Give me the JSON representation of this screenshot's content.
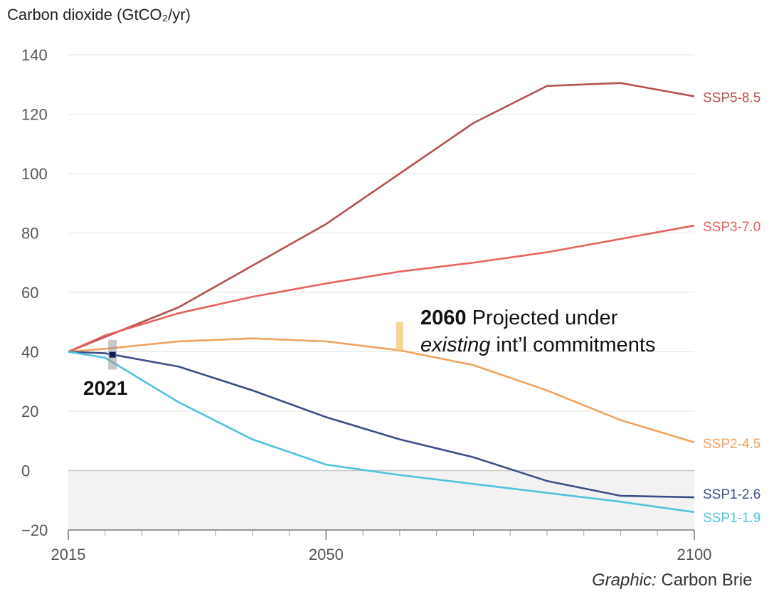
{
  "chart_data": {
    "type": "line",
    "ylabel": "Carbon dioxide (GtCO₂/yr)",
    "xlim": [
      2015,
      2100
    ],
    "ylim": [
      -20,
      140
    ],
    "x_ticks": [
      2015,
      2050,
      2100
    ],
    "y_ticks": [
      -20,
      0,
      20,
      40,
      60,
      80,
      100,
      120,
      140
    ],
    "grid": "horizontal",
    "negative_region_shaded": true,
    "x": [
      2015,
      2020,
      2030,
      2040,
      2050,
      2060,
      2070,
      2080,
      2090,
      2100
    ],
    "series": [
      {
        "name": "SSP5-8.5",
        "color": "#b5514f",
        "values": [
          40,
          45,
          55,
          69,
          83,
          100,
          117,
          129.5,
          130.5,
          126
        ]
      },
      {
        "name": "SSP3-7.0",
        "color": "#e8615c",
        "values": [
          40,
          45.5,
          53,
          58.5,
          63,
          67,
          70,
          73.5,
          78,
          82.5
        ]
      },
      {
        "name": "SSP2-4.5",
        "color": "#f2a25c",
        "values": [
          40,
          41,
          43.5,
          44.5,
          43.5,
          40.5,
          35.5,
          27,
          17,
          9.5
        ]
      },
      {
        "name": "SSP1-2.6",
        "color": "#3c4e8a",
        "values": [
          40,
          39.5,
          35,
          27,
          18,
          10.5,
          4.5,
          -3.5,
          -8.5,
          -9
        ]
      },
      {
        "name": "SSP1-1.9",
        "color": "#4ec3dd",
        "values": [
          40,
          38,
          23,
          10.5,
          2,
          -1.5,
          -4.5,
          -7.5,
          -10.5,
          -14
        ]
      }
    ],
    "markers": [
      {
        "label": "2021",
        "x": 2021,
        "y": 39,
        "color": "#0d1f5a"
      },
      {
        "label": "2060",
        "x": 2060,
        "y": 45,
        "color": "#f6cf80"
      }
    ],
    "annotations": {
      "a2021": "2021",
      "a2060_year": "2060",
      "a2060_line1": "Projected under",
      "a2060_existing": "existing",
      "a2060_line2": "int’l commitments"
    }
  },
  "credit": {
    "prefix": "Graphic:",
    "source": "Carbon Brie"
  }
}
